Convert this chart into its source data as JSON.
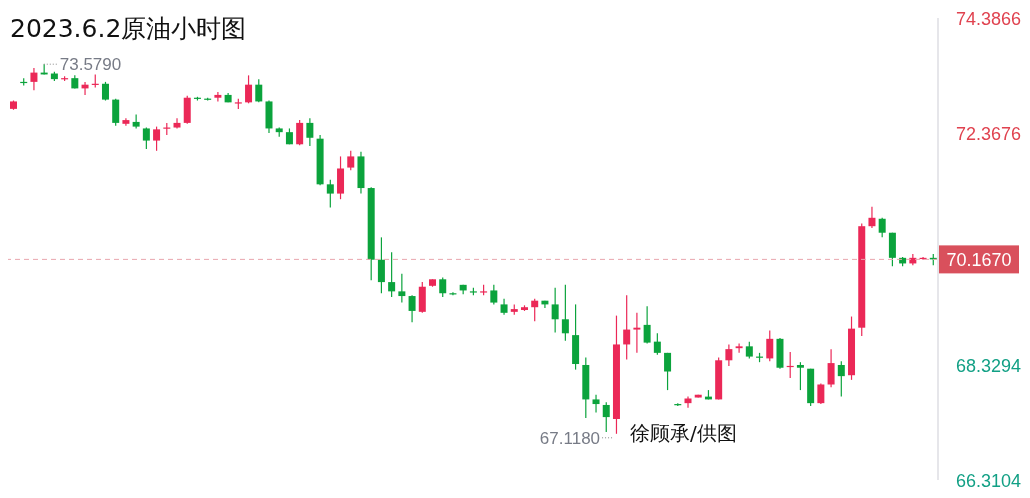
{
  "chart_data": {
    "type": "candlestick",
    "title": "2023.6.2原油小时图",
    "categories": [
      null,
      null,
      null,
      null,
      null,
      null,
      null,
      null,
      null,
      null,
      null,
      null,
      null,
      null,
      null,
      null,
      null,
      null,
      null,
      null,
      null,
      null,
      null,
      null,
      null,
      null,
      null,
      null,
      null,
      null,
      null,
      null,
      null,
      null,
      null,
      null,
      null,
      null,
      null,
      null,
      null,
      null,
      null,
      null,
      null,
      null,
      null,
      null,
      null,
      null,
      null,
      null,
      null,
      null,
      null,
      null,
      null,
      null,
      null,
      null,
      null,
      null,
      null,
      null,
      null,
      null,
      null,
      null,
      null,
      null,
      null,
      null,
      null,
      null,
      null,
      null,
      null,
      null,
      null,
      null,
      null,
      null,
      null,
      null,
      null,
      null,
      null,
      null,
      null,
      null,
      null
    ],
    "ohlc": [
      [
        72.798,
        72.944,
        72.782,
        72.928
      ],
      [
        73.27,
        73.335,
        73.205,
        73.254
      ],
      [
        73.27,
        73.514,
        73.123,
        73.432
      ],
      [
        73.432,
        73.579,
        73.4,
        73.4
      ],
      [
        73.416,
        73.449,
        73.286,
        73.318
      ],
      [
        73.318,
        73.368,
        73.286,
        73.335
      ],
      [
        73.335,
        73.384,
        73.156,
        73.156
      ],
      [
        73.156,
        73.27,
        73.042,
        73.221
      ],
      [
        73.221,
        73.4,
        73.172,
        73.237
      ],
      [
        73.237,
        73.27,
        72.944,
        72.96
      ],
      [
        72.96,
        72.977,
        72.505,
        72.553
      ],
      [
        72.537,
        72.635,
        72.505,
        72.602
      ],
      [
        72.57,
        72.7,
        72.456,
        72.488
      ],
      [
        72.456,
        72.472,
        72.098,
        72.244
      ],
      [
        72.244,
        72.488,
        72.065,
        72.44
      ],
      [
        72.456,
        72.553,
        72.342,
        72.472
      ],
      [
        72.472,
        72.635,
        72.456,
        72.553
      ],
      [
        72.553,
        73.026,
        72.537,
        72.993
      ],
      [
        72.993,
        73.009,
        72.944,
        72.977
      ],
      [
        72.977,
        72.993,
        72.944,
        72.96
      ],
      [
        72.993,
        73.091,
        72.928,
        73.042
      ],
      [
        73.042,
        73.075,
        72.912,
        72.912
      ],
      [
        72.895,
        72.977,
        72.798,
        72.912
      ],
      [
        72.912,
        73.384,
        72.895,
        73.221
      ],
      [
        73.221,
        73.318,
        72.912,
        72.928
      ],
      [
        72.928,
        72.944,
        72.375,
        72.456
      ],
      [
        72.456,
        72.472,
        72.309,
        72.391
      ],
      [
        72.391,
        72.456,
        72.179,
        72.179
      ],
      [
        72.179,
        72.602,
        72.163,
        72.553
      ],
      [
        72.553,
        72.635,
        72.147,
        72.293
      ],
      [
        72.277,
        72.342,
        71.463,
        71.479
      ],
      [
        71.479,
        71.561,
        71.072,
        71.317
      ],
      [
        71.317,
        71.967,
        71.219,
        71.756
      ],
      [
        71.772,
        72.065,
        71.724,
        71.967
      ],
      [
        71.967,
        72.049,
        71.317,
        71.414
      ],
      [
        71.414,
        71.43,
        69.803,
        70.161
      ],
      [
        70.161,
        70.552,
        69.575,
        69.77
      ],
      [
        69.77,
        70.291,
        69.51,
        69.608
      ],
      [
        69.608,
        69.917,
        69.412,
        69.526
      ],
      [
        69.526,
        69.542,
        69.07,
        69.266
      ],
      [
        69.25,
        69.77,
        69.233,
        69.689
      ],
      [
        69.705,
        69.819,
        69.689,
        69.819
      ],
      [
        69.819,
        69.852,
        69.51,
        69.575
      ],
      [
        69.575,
        69.591,
        69.542,
        69.559
      ],
      [
        69.722,
        69.722,
        69.559,
        69.624
      ],
      [
        69.608,
        69.673,
        69.542,
        69.591
      ],
      [
        69.591,
        69.722,
        69.542,
        69.608
      ],
      [
        69.624,
        69.722,
        69.38,
        69.412
      ],
      [
        69.38,
        69.477,
        69.201,
        69.233
      ],
      [
        69.25,
        69.38,
        69.201,
        69.298
      ],
      [
        69.282,
        69.364,
        69.266,
        69.331
      ],
      [
        69.331,
        69.477,
        69.087,
        69.445
      ],
      [
        69.445,
        69.445,
        69.315,
        69.38
      ],
      [
        69.38,
        69.673,
        68.891,
        69.12
      ],
      [
        69.12,
        69.722,
        68.745,
        68.875
      ],
      [
        68.843,
        69.38,
        68.24,
        68.338
      ],
      [
        68.321,
        68.452,
        67.394,
        67.719
      ],
      [
        67.719,
        67.801,
        67.491,
        67.638
      ],
      [
        67.622,
        67.67,
        67.15,
        67.41
      ],
      [
        67.377,
        69.184,
        67.118,
        68.68
      ],
      [
        68.68,
        69.542,
        68.419,
        68.94
      ],
      [
        68.94,
        69.233,
        68.533,
        68.973
      ],
      [
        69.022,
        69.347,
        68.696,
        68.712
      ],
      [
        68.729,
        68.875,
        68.501,
        68.533
      ],
      [
        68.533,
        68.533,
        67.882,
        68.207
      ],
      [
        67.638,
        67.654,
        67.605,
        67.622
      ],
      [
        67.654,
        67.768,
        67.573,
        67.735
      ],
      [
        67.752,
        67.801,
        67.752,
        67.801
      ],
      [
        67.768,
        67.882,
        67.719,
        67.719
      ],
      [
        67.719,
        68.452,
        67.719,
        68.403
      ],
      [
        68.403,
        68.68,
        68.305,
        68.598
      ],
      [
        68.615,
        68.696,
        68.533,
        68.647
      ],
      [
        68.647,
        68.729,
        68.436,
        68.468
      ],
      [
        68.468,
        68.533,
        68.37,
        68.452
      ],
      [
        68.436,
        68.924,
        68.387,
        68.778
      ],
      [
        68.778,
        68.794,
        68.256,
        68.273
      ],
      [
        68.289,
        68.55,
        68.094,
        68.305
      ],
      [
        68.321,
        68.37,
        67.882,
        68.273
      ],
      [
        68.256,
        68.256,
        67.605,
        67.654
      ],
      [
        67.654,
        67.996,
        67.638,
        67.98
      ],
      [
        67.98,
        68.598,
        67.931,
        68.354
      ],
      [
        68.321,
        68.387,
        67.768,
        68.126
      ],
      [
        68.142,
        69.168,
        68.061,
        68.956
      ],
      [
        68.973,
        70.796,
        68.826,
        70.747
      ],
      [
        70.747,
        71.089,
        70.714,
        70.894
      ],
      [
        70.877,
        70.894,
        70.552,
        70.633
      ],
      [
        70.633,
        70.633,
        70.047,
        70.194
      ],
      [
        70.194,
        70.21,
        70.047,
        70.096
      ],
      [
        70.096,
        70.259,
        70.063,
        70.194
      ],
      [
        70.177,
        70.21,
        70.161,
        70.194
      ],
      [
        70.194,
        70.259,
        70.063,
        70.167
      ]
    ],
    "colors": [
      "#eb2857",
      "#0ba33c",
      "#eb2857",
      "#0ba33c",
      "#0ba33c",
      "#eb2857",
      "#0ba33c",
      "#eb2857",
      "#eb2857",
      "#0ba33c",
      "#0ba33c",
      "#eb2857",
      "#0ba33c",
      "#0ba33c",
      "#eb2857",
      "#eb2857",
      "#eb2857",
      "#eb2857",
      "#0ba33c",
      "#0ba33c",
      "#eb2857",
      "#0ba33c",
      "#eb2857",
      "#eb2857",
      "#0ba33c",
      "#0ba33c",
      "#0ba33c",
      "#0ba33c",
      "#eb2857",
      "#0ba33c",
      "#0ba33c",
      "#0ba33c",
      "#eb2857",
      "#eb2857",
      "#0ba33c",
      "#0ba33c",
      "#0ba33c",
      "#0ba33c",
      "#0ba33c",
      "#0ba33c",
      "#eb2857",
      "#eb2857",
      "#0ba33c",
      "#0ba33c",
      "#0ba33c",
      "#0ba33c",
      "#eb2857",
      "#0ba33c",
      "#0ba33c",
      "#eb2857",
      "#eb2857",
      "#eb2857",
      "#0ba33c",
      "#0ba33c",
      "#0ba33c",
      "#0ba33c",
      "#0ba33c",
      "#0ba33c",
      "#0ba33c",
      "#eb2857",
      "#eb2857",
      "#eb2857",
      "#0ba33c",
      "#0ba33c",
      "#0ba33c",
      "#0ba33c",
      "#eb2857",
      "#eb2857",
      "#0ba33c",
      "#eb2857",
      "#eb2857",
      "#eb2857",
      "#0ba33c",
      "#0ba33c",
      "#eb2857",
      "#0ba33c",
      "#eb2857",
      "#0ba33c",
      "#0ba33c",
      "#eb2857",
      "#eb2857",
      "#0ba33c",
      "#eb2857",
      "#eb2857",
      "#eb2857",
      "#0ba33c",
      "#0ba33c",
      "#0ba33c",
      "#eb2857",
      "#eb2857",
      "#0ba33c"
    ],
    "ylim": [
      66.3104,
      74.3866
    ],
    "yticks": [
      74.3866,
      72.3676,
      68.3294,
      66.3104
    ],
    "tick_labels": "y",
    "ref_lines": [
      {
        "axis": "y",
        "value": 70.167,
        "label": "70.1670",
        "color": "#e9a5ae",
        "line_style": "dashed"
      }
    ],
    "annotations": [
      "73.5790",
      "67.1180",
      "徐顾承/供图"
    ]
  }
}
